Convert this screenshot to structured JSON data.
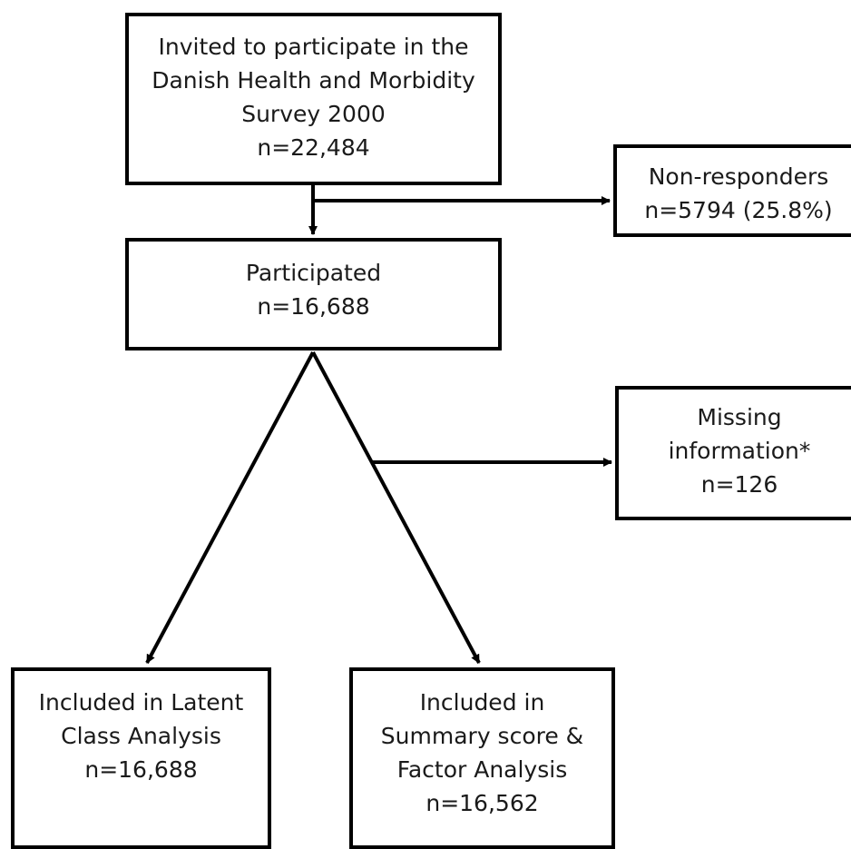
{
  "boxes": {
    "invited": {
      "lines": [
        "Invited to participate in the",
        "Danish Health and Morbidity",
        "Survey 2000",
        "n=22,484"
      ]
    },
    "non_responders": {
      "lines": [
        "Non-responders",
        "n=5794 (25.8%)"
      ]
    },
    "participated": {
      "lines": [
        "Participated",
        "n=16,688"
      ]
    },
    "missing": {
      "lines": [
        "Missing",
        "information*",
        "n=126"
      ]
    },
    "latent": {
      "lines": [
        "Included in Latent",
        "Class Analysis",
        "n=16,688"
      ]
    },
    "summary": {
      "lines": [
        "Included in",
        "Summary score &",
        "Factor Analysis",
        "n=16,562"
      ]
    }
  },
  "style": {
    "line_color": "#000000",
    "text_color": "#1a1a1a",
    "background": "#ffffff"
  }
}
